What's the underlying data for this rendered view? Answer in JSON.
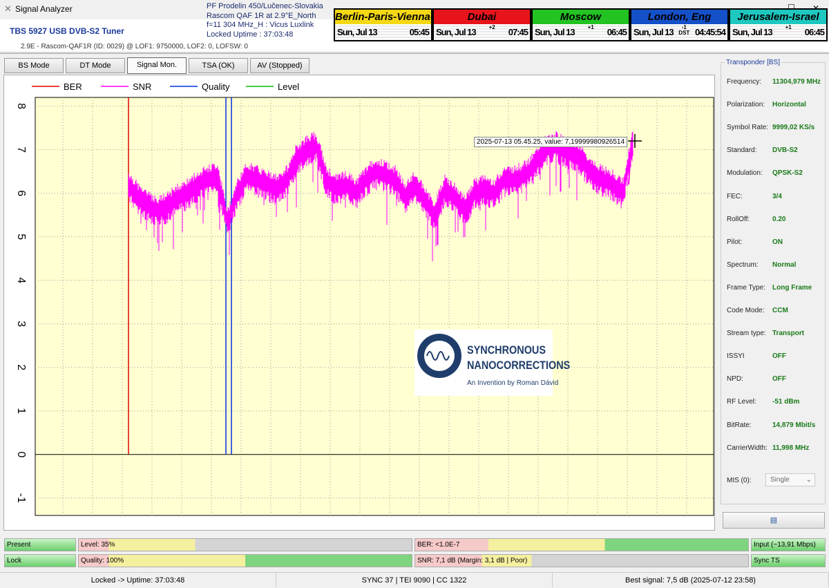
{
  "window": {
    "title": "Signal Analyzer"
  },
  "header": {
    "tuner": "TBS 5927 USB DVB-S2 Tuner",
    "sat_info": "2.9E - Rascom-QAF1R (ID: 0029) @ LOF1: 9750000, LOF2: 0, LOFSW: 0",
    "overlay_lines": [
      "PF Prodelin 450/Lučenec-Slovakia",
      "Rascom QAF 1R at 2.9°E_North",
      "f=11 304 MHz_H : Vicus Luxlink",
      "Locked Uptime : 37:03:48"
    ]
  },
  "clocks": [
    {
      "name": "Berlin-Paris-Vienna-Roma",
      "date": "Sun, Jul 13",
      "time": "05:45",
      "offset": "",
      "color": "#f5d814",
      "text": "#000"
    },
    {
      "name": "Dubai",
      "date": "Sun, Jul 13",
      "time": "07:45",
      "offset": "+2",
      "color": "#e8141c",
      "text": "#000"
    },
    {
      "name": "Moscow",
      "date": "Sun, Jul 13",
      "time": "06:45",
      "offset": "+1",
      "color": "#22c322",
      "text": "#000"
    },
    {
      "name": "London, Eng",
      "date": "Sun, Jul 13",
      "time": "04:45:54",
      "offset": "-1 DST",
      "color": "#1450c8",
      "text": "#000"
    },
    {
      "name": "Jerusalem-Israel",
      "date": "Sun, Jul 13",
      "time": "06:45",
      "offset": "+1",
      "color": "#1ec8c0",
      "text": "#000"
    }
  ],
  "tabs": [
    "BS Mode",
    "DT Mode",
    "Signal Mon.",
    "TSA (OK)",
    "AV (Stopped)"
  ],
  "active_tab": "Signal Mon.",
  "chart_data": {
    "type": "line",
    "ylim": [
      -1.4,
      8.2
    ],
    "yticks": [
      -1,
      0,
      1,
      2,
      3,
      4,
      5,
      6,
      7,
      8
    ],
    "grid": true,
    "legend": "top-left",
    "series": [
      {
        "name": "BER",
        "color": "#e00000"
      },
      {
        "name": "SNR",
        "color": "#ff00ff",
        "values": [
          6.2,
          5.9,
          5.7,
          5.6,
          5.7,
          5.9,
          6.0,
          6.2,
          6.3,
          6.4,
          5.3,
          6.0,
          6.4,
          6.3,
          6.2,
          6.1,
          6.3,
          6.8,
          7.0,
          7.1,
          6.3,
          6.1,
          6.2,
          6.0,
          6.3,
          6.5,
          6.4,
          6.3,
          5.9,
          6.2,
          5.8,
          5.5,
          6.1,
          5.9,
          5.6,
          6.0,
          6.1,
          6.0,
          6.3,
          6.3,
          6.4,
          6.6,
          7.0,
          7.1,
          7.0,
          6.9,
          6.7,
          6.4,
          6.3,
          6.2,
          6.0,
          7.2
        ]
      },
      {
        "name": "Quality",
        "color": "#0030e0"
      },
      {
        "name": "Level",
        "color": "#00c000"
      }
    ],
    "tooltip": "2025-07-13 05.45.25, value: 7,19999980926514"
  },
  "logo": {
    "title1": "SYNCHRONOUS",
    "title2": "NANOCORRECTIONS",
    "subtitle": "An Invention by Roman Dávid",
    "seal": "AN INVENTION BY ROMAN DÁVID"
  },
  "transponder": {
    "title": "Transponder [BS]",
    "rows": [
      [
        "Frequency:",
        "11304,979 MHz"
      ],
      [
        "Polarization:",
        "Horizontal"
      ],
      [
        "Symbol Rate:",
        "9999,02 KS/s"
      ],
      [
        "Standard:",
        "DVB-S2"
      ],
      [
        "Modulation:",
        "QPSK-S2"
      ],
      [
        "FEC:",
        "3/4"
      ],
      [
        "RollOff:",
        "0.20"
      ],
      [
        "Pilot:",
        "ON"
      ],
      [
        "Spectrum:",
        "Normal"
      ],
      [
        "Frame Type:",
        "Long Frame"
      ],
      [
        "Code Mode:",
        "CCM"
      ],
      [
        "Stream type:",
        "Transport"
      ],
      [
        "ISSYI",
        "OFF"
      ],
      [
        "NPD:",
        "OFF"
      ],
      [
        "RF Level:",
        "-51 dBm"
      ],
      [
        "BitRate:",
        "14,879 Mbit/s"
      ],
      [
        "CarrierWidth:",
        "11,998 MHz"
      ]
    ],
    "mis_label": "MIS (0):",
    "mis_value": "Single"
  },
  "bars": {
    "present": "Present",
    "lock": "Lock",
    "level": "Level: 35%",
    "level_pct": 35,
    "quality": "Quality: 100%",
    "quality_pct": 100,
    "ber": "BER: <1.0E-7",
    "snr": "SNR: 7,1 dB (Margin: 3,1 dB | Poor)",
    "input": "Input (~13,91 Mbps)",
    "sync": "Sync TS"
  },
  "status": [
    "Locked -> Uptime: 37:03:48",
    "SYNC 37 | TEI 9090 | CC 1322",
    "Best signal: 7,5 dB (2025-07-12 23:58)"
  ]
}
